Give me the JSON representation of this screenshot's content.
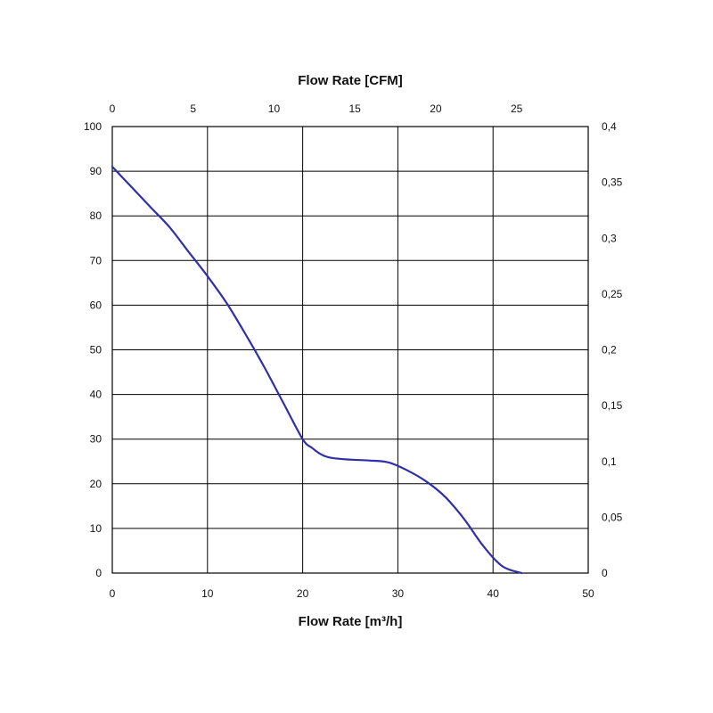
{
  "chart_data": {
    "type": "line",
    "title": "",
    "xlabel": "Flow Rate [m³/h]",
    "x2label": "Flow Rate [CFM]",
    "ylabel": "",
    "y2label": "",
    "xlim": [
      0,
      50
    ],
    "x2lim": [
      0,
      29.43
    ],
    "ylim": [
      0,
      100
    ],
    "y2lim": [
      0,
      0.4
    ],
    "x_ticks": [
      "0",
      "10",
      "20",
      "30",
      "40",
      "50"
    ],
    "x2_ticks": [
      "0",
      "5",
      "10",
      "15",
      "20",
      "25"
    ],
    "y_ticks": [
      "0",
      "10",
      "20",
      "30",
      "40",
      "50",
      "60",
      "70",
      "80",
      "90",
      "100"
    ],
    "y2_ticks": [
      "0",
      "0,05",
      "0,1",
      "0,15",
      "0,2",
      "0,25",
      "0,3",
      "0,35",
      "0,4"
    ],
    "grid": true,
    "line_color": "#2f2fa8",
    "series": [
      {
        "x": [
          0,
          2,
          4,
          6,
          8,
          10,
          12,
          14,
          16,
          18,
          20,
          21,
          22,
          23,
          25,
          27,
          29,
          31,
          33,
          35,
          37,
          39,
          41,
          43
        ],
        "y": [
          91,
          86.5,
          82,
          77.5,
          72,
          66.5,
          60.5,
          53.5,
          46,
          38,
          30,
          28,
          26.5,
          25.8,
          25.4,
          25.2,
          24.8,
          23,
          20.5,
          17,
          12,
          6,
          1.5,
          0
        ]
      }
    ]
  }
}
